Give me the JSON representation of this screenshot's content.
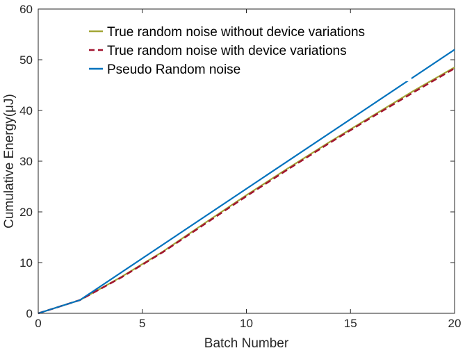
{
  "chart_data": {
    "type": "line",
    "xlabel": "Batch Number",
    "ylabel": "Cumulative Energy(μJ)",
    "xlim": [
      0,
      20
    ],
    "ylim": [
      0,
      60
    ],
    "xticks": [
      "0",
      "5",
      "10",
      "15",
      "20"
    ],
    "yticks": [
      "0",
      "10",
      "20",
      "30",
      "40",
      "50",
      "60"
    ],
    "grid": false,
    "legend_position": "top-left",
    "series": [
      {
        "name": "True random noise without device variations",
        "color": "#a2a636",
        "style": "solid",
        "x": [
          0,
          2,
          4,
          6,
          8,
          10,
          12,
          14,
          16,
          18,
          20
        ],
        "y": [
          0,
          2.6,
          7.2,
          12.2,
          17.8,
          23.3,
          28.6,
          33.8,
          38.8,
          43.8,
          48.5
        ]
      },
      {
        "name": "True random noise with device variations",
        "color": "#a2142f",
        "style": "dashed",
        "x": [
          0,
          2,
          4,
          6,
          8,
          10,
          12,
          14,
          16,
          18,
          20
        ],
        "y": [
          0,
          2.6,
          7.1,
          12.1,
          17.6,
          23.1,
          28.4,
          33.6,
          38.6,
          43.5,
          48.3
        ]
      },
      {
        "name": "Pseudo Random noise",
        "color": "#0072bd",
        "style": "solid",
        "x": [
          0,
          2,
          20
        ],
        "y": [
          0,
          2.6,
          52.0
        ]
      }
    ]
  }
}
